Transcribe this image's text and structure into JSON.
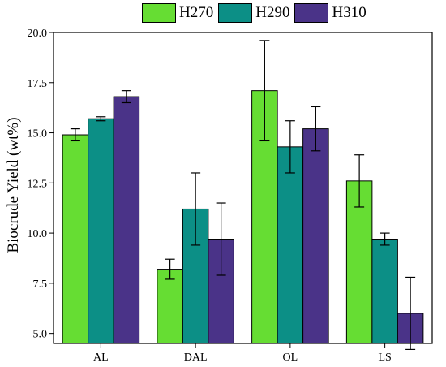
{
  "chart_data": {
    "type": "bar",
    "title": "",
    "xlabel": "",
    "ylabel": "Biocrude Yield (wt%)",
    "ylim": [
      4.5,
      20.0
    ],
    "yticks": [
      5.0,
      7.5,
      10.0,
      12.5,
      15.0,
      17.5,
      20.0
    ],
    "ytick_labels": [
      "5.0",
      "7.5",
      "10.0",
      "12.5",
      "15.0",
      "17.5",
      "20.0"
    ],
    "categories": [
      "AL",
      "DAL",
      "OL",
      "LS"
    ],
    "legend_position": "top-center",
    "series": [
      {
        "name": "H270",
        "color": "#66dd33",
        "values": [
          14.9,
          8.2,
          17.1,
          12.6
        ],
        "errors": [
          0.3,
          0.5,
          2.5,
          1.3
        ]
      },
      {
        "name": "H290",
        "color": "#0c8f86",
        "values": [
          15.7,
          11.2,
          14.3,
          9.7
        ],
        "errors": [
          0.1,
          1.8,
          1.3,
          0.3
        ]
      },
      {
        "name": "H310",
        "color": "#4a3388",
        "values": [
          16.8,
          9.7,
          15.2,
          6.0
        ],
        "errors": [
          0.3,
          1.8,
          1.1,
          1.8
        ]
      }
    ]
  }
}
